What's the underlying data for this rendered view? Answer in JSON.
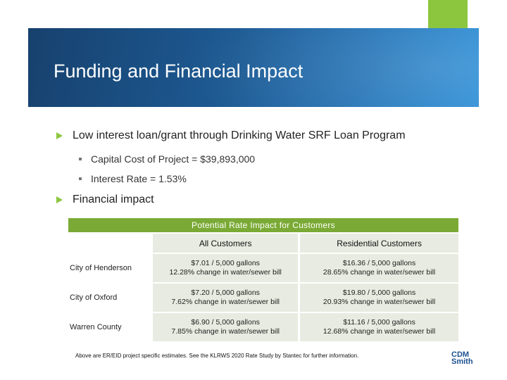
{
  "slide": {
    "title": "Funding and Financial Impact",
    "bullets": [
      {
        "text": "Low interest loan/grant through Drinking Water SRF Loan Program"
      },
      {
        "text": "Financial impact"
      }
    ],
    "sub_bullets": [
      {
        "text": "Capital Cost of Project = $39,893,000"
      },
      {
        "text": "Interest Rate = 1.53%"
      }
    ],
    "accent_color": "#8cc63f",
    "title_bar_color": "#1d5a93"
  },
  "table": {
    "title": "Potential Rate Impact for Customers",
    "headers": [
      "",
      "All Customers",
      "Residential Customers"
    ],
    "rows": [
      {
        "city": "City of Henderson",
        "all_1": "$7.01 / 5,000 gallons",
        "all_2": "12.28% change in water/sewer bill",
        "res_1": "$16.36 / 5,000 gallons",
        "res_2": "28.65% change in water/sewer bill"
      },
      {
        "city": "City of Oxford",
        "all_1": "$7.20 / 5,000 gallons",
        "all_2": "7.62% change in water/sewer bill",
        "res_1": "$19.80 / 5,000 gallons",
        "res_2": "20.93% change in water/sewer bill"
      },
      {
        "city": "Warren County",
        "all_1": "$6.90 / 5,000 gallons",
        "all_2": "7.85% change in water/sewer bill",
        "res_1": "$11.16 / 5,000 gallons",
        "res_2": "12.68% change in water/sewer bill"
      }
    ]
  },
  "footnote": "Above are ER/EID project specific estimates.  See the KLRWS 2020 Rate Study by Stantec for further information.",
  "logo": {
    "line1": "CDM",
    "line2": "Smith"
  }
}
